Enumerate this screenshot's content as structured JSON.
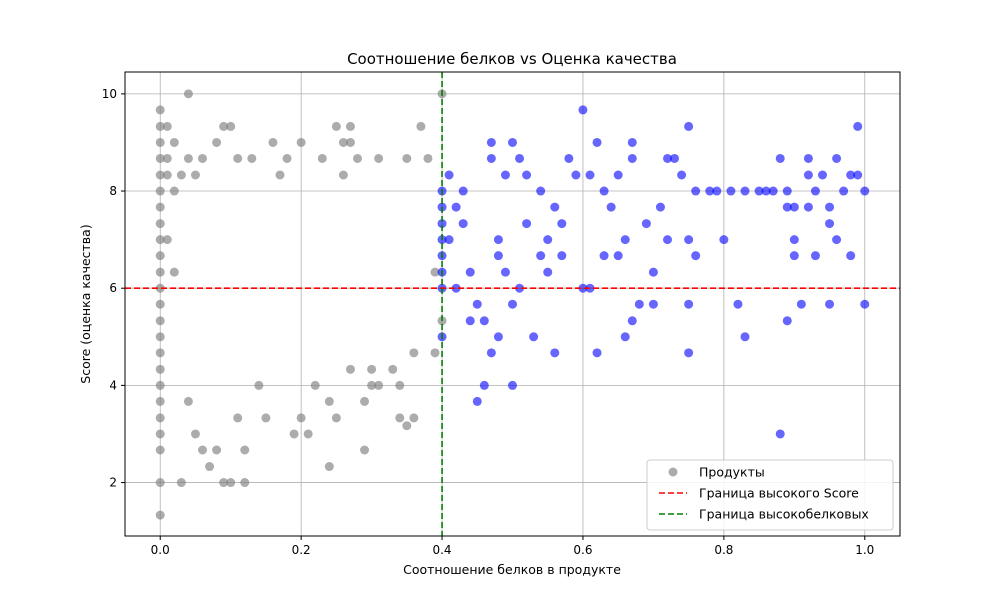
{
  "chart_data": {
    "type": "scatter",
    "title": "Соотношение белков vs Оценка качества",
    "xlabel": "Соотношение белков в продукте",
    "ylabel": "Score (оценка качества)",
    "xlim": [
      -0.05,
      1.05
    ],
    "ylim": [
      0.9,
      10.45
    ],
    "xticks": [
      0.0,
      0.2,
      0.4,
      0.6,
      0.8,
      1.0
    ],
    "xtick_labels": [
      "0.0",
      "0.2",
      "0.4",
      "0.6",
      "0.8",
      "1.0"
    ],
    "yticks": [
      2,
      4,
      6,
      8,
      10
    ],
    "ytick_labels": [
      "2",
      "4",
      "6",
      "8",
      "10"
    ],
    "grid": true,
    "legend_position": "bottom-right",
    "reference_lines": [
      {
        "orientation": "horizontal",
        "value": 6,
        "color": "#ff0000",
        "style": "dashed",
        "label": "Граница высокого Score"
      },
      {
        "orientation": "vertical",
        "value": 0.4,
        "color": "#008000",
        "style": "dashed",
        "label": "Граница высокобелковых"
      }
    ],
    "series": [
      {
        "name": "Продукты",
        "color": "#808080",
        "opacity": 0.65,
        "points": [
          [
            0.0,
            9.67
          ],
          [
            0.0,
            9.33
          ],
          [
            0.0,
            9.0
          ],
          [
            0.0,
            8.67
          ],
          [
            0.0,
            8.33
          ],
          [
            0.0,
            8.0
          ],
          [
            0.0,
            7.67
          ],
          [
            0.0,
            7.33
          ],
          [
            0.0,
            7.0
          ],
          [
            0.0,
            6.67
          ],
          [
            0.0,
            6.33
          ],
          [
            0.0,
            6.0
          ],
          [
            0.0,
            5.67
          ],
          [
            0.0,
            5.33
          ],
          [
            0.0,
            5.0
          ],
          [
            0.0,
            4.67
          ],
          [
            0.0,
            4.33
          ],
          [
            0.0,
            4.0
          ],
          [
            0.0,
            3.67
          ],
          [
            0.0,
            3.33
          ],
          [
            0.0,
            3.0
          ],
          [
            0.0,
            2.67
          ],
          [
            0.0,
            2.0
          ],
          [
            0.0,
            1.33
          ],
          [
            0.01,
            9.33
          ],
          [
            0.01,
            8.67
          ],
          [
            0.01,
            8.33
          ],
          [
            0.01,
            7.0
          ],
          [
            0.02,
            9.0
          ],
          [
            0.02,
            8.0
          ],
          [
            0.02,
            6.33
          ],
          [
            0.03,
            8.33
          ],
          [
            0.03,
            2.0
          ],
          [
            0.04,
            10.0
          ],
          [
            0.04,
            8.67
          ],
          [
            0.04,
            3.67
          ],
          [
            0.05,
            8.33
          ],
          [
            0.05,
            3.0
          ],
          [
            0.06,
            8.67
          ],
          [
            0.06,
            2.67
          ],
          [
            0.07,
            2.33
          ],
          [
            0.08,
            9.0
          ],
          [
            0.08,
            2.67
          ],
          [
            0.09,
            2.0
          ],
          [
            0.1,
            2.0
          ],
          [
            0.11,
            3.33
          ],
          [
            0.12,
            2.0
          ],
          [
            0.12,
            2.67
          ],
          [
            0.09,
            9.33
          ],
          [
            0.1,
            9.33
          ],
          [
            0.11,
            8.67
          ],
          [
            0.13,
            8.67
          ],
          [
            0.15,
            3.33
          ],
          [
            0.14,
            4.0
          ],
          [
            0.16,
            9.0
          ],
          [
            0.17,
            8.33
          ],
          [
            0.18,
            8.67
          ],
          [
            0.19,
            3.0
          ],
          [
            0.2,
            3.33
          ],
          [
            0.21,
            3.0
          ],
          [
            0.22,
            4.0
          ],
          [
            0.2,
            9.0
          ],
          [
            0.23,
            8.67
          ],
          [
            0.24,
            2.33
          ],
          [
            0.24,
            3.67
          ],
          [
            0.25,
            3.33
          ],
          [
            0.26,
            9.0
          ],
          [
            0.26,
            8.33
          ],
          [
            0.27,
            9.33
          ],
          [
            0.27,
            9.0
          ],
          [
            0.28,
            8.67
          ],
          [
            0.29,
            2.67
          ],
          [
            0.29,
            3.67
          ],
          [
            0.3,
            4.0
          ],
          [
            0.3,
            4.33
          ],
          [
            0.31,
            4.0
          ],
          [
            0.31,
            8.67
          ],
          [
            0.33,
            4.33
          ],
          [
            0.34,
            3.33
          ],
          [
            0.35,
            3.17
          ],
          [
            0.36,
            3.33
          ],
          [
            0.37,
            9.33
          ],
          [
            0.38,
            8.67
          ],
          [
            0.39,
            4.67
          ],
          [
            0.4,
            10.0
          ],
          [
            0.4,
            5.33
          ],
          [
            0.39,
            6.33
          ],
          [
            0.36,
            4.67
          ],
          [
            0.34,
            4.0
          ],
          [
            0.35,
            8.67
          ],
          [
            0.25,
            9.33
          ],
          [
            0.27,
            4.33
          ]
        ]
      },
      {
        "name": "",
        "color": "#0000ff",
        "opacity": 0.6,
        "points": [
          [
            0.4,
            8.0
          ],
          [
            0.4,
            7.67
          ],
          [
            0.4,
            7.33
          ],
          [
            0.4,
            7.0
          ],
          [
            0.4,
            6.67
          ],
          [
            0.4,
            6.33
          ],
          [
            0.4,
            6.0
          ],
          [
            0.4,
            5.0
          ],
          [
            0.41,
            8.33
          ],
          [
            0.41,
            7.0
          ],
          [
            0.42,
            7.67
          ],
          [
            0.42,
            6.0
          ],
          [
            0.43,
            8.0
          ],
          [
            0.43,
            7.33
          ],
          [
            0.44,
            6.33
          ],
          [
            0.44,
            5.33
          ],
          [
            0.45,
            5.67
          ],
          [
            0.45,
            3.67
          ],
          [
            0.46,
            5.33
          ],
          [
            0.46,
            4.0
          ],
          [
            0.47,
            9.0
          ],
          [
            0.47,
            8.67
          ],
          [
            0.47,
            4.67
          ],
          [
            0.48,
            7.0
          ],
          [
            0.48,
            6.67
          ],
          [
            0.48,
            5.0
          ],
          [
            0.49,
            8.33
          ],
          [
            0.49,
            6.33
          ],
          [
            0.5,
            9.0
          ],
          [
            0.5,
            5.67
          ],
          [
            0.5,
            4.0
          ],
          [
            0.51,
            8.67
          ],
          [
            0.51,
            6.0
          ],
          [
            0.52,
            8.33
          ],
          [
            0.52,
            7.33
          ],
          [
            0.53,
            5.0
          ],
          [
            0.54,
            8.0
          ],
          [
            0.54,
            6.67
          ],
          [
            0.55,
            7.0
          ],
          [
            0.55,
            6.33
          ],
          [
            0.56,
            7.67
          ],
          [
            0.56,
            4.67
          ],
          [
            0.57,
            6.67
          ],
          [
            0.57,
            7.33
          ],
          [
            0.58,
            8.67
          ],
          [
            0.59,
            8.33
          ],
          [
            0.6,
            9.67
          ],
          [
            0.6,
            6.0
          ],
          [
            0.61,
            6.0
          ],
          [
            0.61,
            8.33
          ],
          [
            0.62,
            9.0
          ],
          [
            0.62,
            4.67
          ],
          [
            0.63,
            6.67
          ],
          [
            0.63,
            8.0
          ],
          [
            0.64,
            7.67
          ],
          [
            0.65,
            6.67
          ],
          [
            0.65,
            8.33
          ],
          [
            0.66,
            7.0
          ],
          [
            0.66,
            5.0
          ],
          [
            0.67,
            9.0
          ],
          [
            0.67,
            8.67
          ],
          [
            0.67,
            5.33
          ],
          [
            0.68,
            5.67
          ],
          [
            0.69,
            7.33
          ],
          [
            0.7,
            6.33
          ],
          [
            0.7,
            5.67
          ],
          [
            0.71,
            7.67
          ],
          [
            0.72,
            8.67
          ],
          [
            0.72,
            7.0
          ],
          [
            0.73,
            8.67
          ],
          [
            0.74,
            8.33
          ],
          [
            0.75,
            9.33
          ],
          [
            0.75,
            7.0
          ],
          [
            0.75,
            5.67
          ],
          [
            0.75,
            4.67
          ],
          [
            0.76,
            6.67
          ],
          [
            0.76,
            8.0
          ],
          [
            0.78,
            8.0
          ],
          [
            0.79,
            8.0
          ],
          [
            0.8,
            7.0
          ],
          [
            0.81,
            8.0
          ],
          [
            0.82,
            5.67
          ],
          [
            0.83,
            8.0
          ],
          [
            0.83,
            5.0
          ],
          [
            0.85,
            8.0
          ],
          [
            0.86,
            8.0
          ],
          [
            0.87,
            8.0
          ],
          [
            0.88,
            8.67
          ],
          [
            0.88,
            3.0
          ],
          [
            0.89,
            8.0
          ],
          [
            0.89,
            7.67
          ],
          [
            0.89,
            5.33
          ],
          [
            0.9,
            7.0
          ],
          [
            0.9,
            6.67
          ],
          [
            0.9,
            7.67
          ],
          [
            0.91,
            5.67
          ],
          [
            0.92,
            8.33
          ],
          [
            0.92,
            7.67
          ],
          [
            0.92,
            8.67
          ],
          [
            0.93,
            8.0
          ],
          [
            0.93,
            6.67
          ],
          [
            0.94,
            8.33
          ],
          [
            0.95,
            7.67
          ],
          [
            0.95,
            7.33
          ],
          [
            0.95,
            5.67
          ],
          [
            0.96,
            8.67
          ],
          [
            0.96,
            7.0
          ],
          [
            0.97,
            8.0
          ],
          [
            0.98,
            8.33
          ],
          [
            0.98,
            6.67
          ],
          [
            0.99,
            8.33
          ],
          [
            0.99,
            9.33
          ],
          [
            1.0,
            8.0
          ],
          [
            1.0,
            5.67
          ]
        ]
      }
    ],
    "legend": [
      {
        "label": "Продукты",
        "marker": "circle",
        "color": "#808080"
      },
      {
        "label": "Граница высокого Score",
        "marker": "dashed-line",
        "color": "#ff0000"
      },
      {
        "label": "Граница высокобелковых",
        "marker": "dashed-line",
        "color": "#008000"
      }
    ]
  }
}
